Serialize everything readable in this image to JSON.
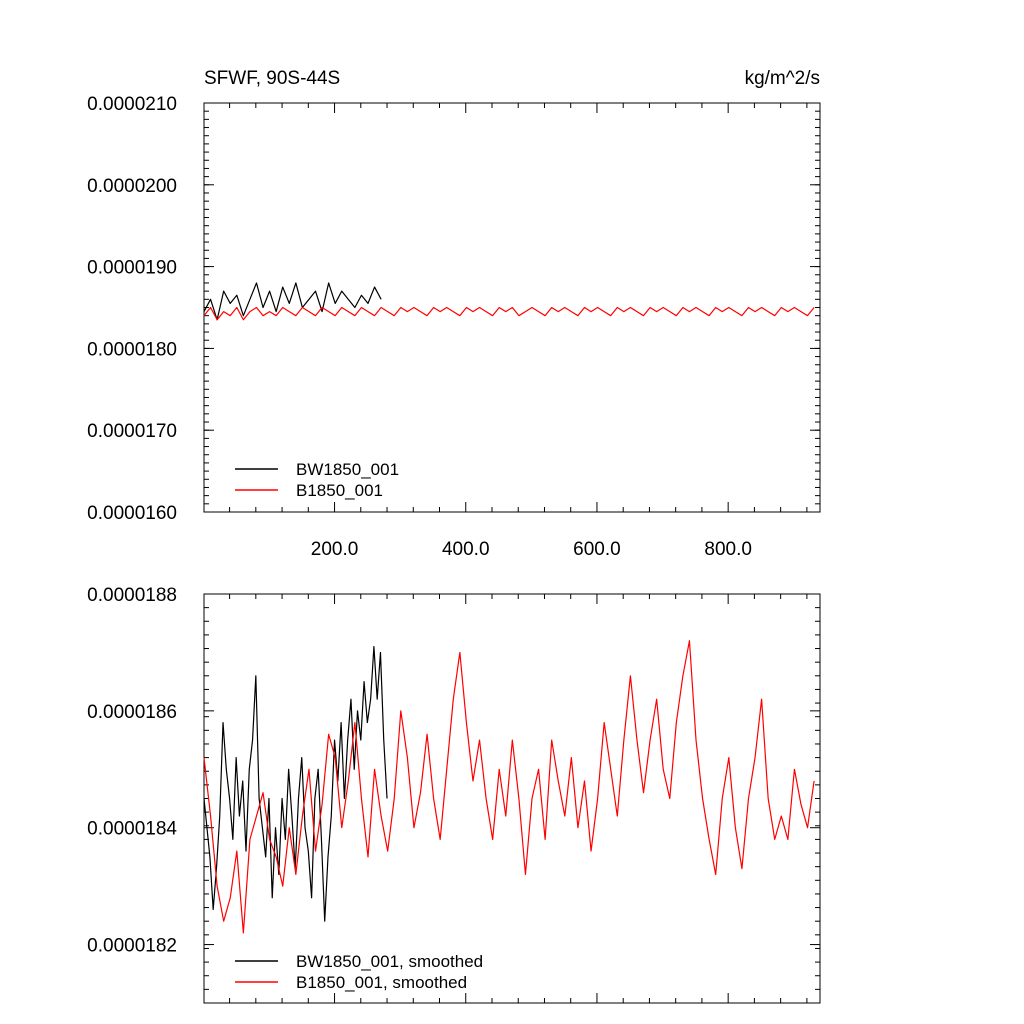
{
  "colors": {
    "BW1850_001": "#000000",
    "B1850_001": "#ff0000"
  },
  "chart_data": [
    {
      "type": "line",
      "title": "SFWF, 90S-44S",
      "units": "kg/m^2/s",
      "xlabel": "",
      "ylabel": "",
      "xlim": [
        1,
        940
      ],
      "ylim": [
        1.6e-05,
        2.1e-05
      ],
      "x_ticks": [
        200,
        400,
        600,
        800
      ],
      "x_tick_labels": [
        "200.0",
        "400.0",
        "600.0",
        "800.0"
      ],
      "y_ticks": [
        1.6e-05,
        1.7e-05,
        1.8e-05,
        1.9e-05,
        2e-05,
        2.1e-05
      ],
      "y_tick_labels": [
        "0.0000160",
        "0.0000170",
        "0.0000180",
        "0.0000190",
        "0.0000200",
        "0.0000210"
      ],
      "grid": false,
      "legend_position": "bottom-left",
      "series": [
        {
          "name": "BW1850_001",
          "color": "#000000",
          "x_start": 1,
          "x_step": 10,
          "values": [
            1.845e-05,
            1.86e-05,
            1.835e-05,
            1.87e-05,
            1.855e-05,
            1.865e-05,
            1.84e-05,
            1.86e-05,
            1.88e-05,
            1.85e-05,
            1.87e-05,
            1.845e-05,
            1.875e-05,
            1.855e-05,
            1.88e-05,
            1.85e-05,
            1.86e-05,
            1.87e-05,
            1.845e-05,
            1.88e-05,
            1.855e-05,
            1.87e-05,
            1.86e-05,
            1.85e-05,
            1.865e-05,
            1.855e-05,
            1.875e-05,
            1.86e-05
          ]
        },
        {
          "name": "B1850_001",
          "color": "#ff0000",
          "x_start": 1,
          "x_step": 10,
          "values": [
            1.84e-05,
            1.85e-05,
            1.835e-05,
            1.845e-05,
            1.84e-05,
            1.85e-05,
            1.835e-05,
            1.845e-05,
            1.85e-05,
            1.84e-05,
            1.845e-05,
            1.84e-05,
            1.85e-05,
            1.845e-05,
            1.84e-05,
            1.85e-05,
            1.845e-05,
            1.84e-05,
            1.85e-05,
            1.845e-05,
            1.84e-05,
            1.85e-05,
            1.845e-05,
            1.84e-05,
            1.85e-05,
            1.845e-05,
            1.84e-05,
            1.85e-05,
            1.845e-05,
            1.84e-05,
            1.85e-05,
            1.845e-05,
            1.85e-05,
            1.845e-05,
            1.84e-05,
            1.85e-05,
            1.845e-05,
            1.85e-05,
            1.845e-05,
            1.84e-05,
            1.85e-05,
            1.845e-05,
            1.85e-05,
            1.845e-05,
            1.84e-05,
            1.85e-05,
            1.845e-05,
            1.85e-05,
            1.84e-05,
            1.845e-05,
            1.85e-05,
            1.845e-05,
            1.84e-05,
            1.85e-05,
            1.845e-05,
            1.85e-05,
            1.845e-05,
            1.84e-05,
            1.85e-05,
            1.845e-05,
            1.85e-05,
            1.845e-05,
            1.84e-05,
            1.85e-05,
            1.845e-05,
            1.85e-05,
            1.845e-05,
            1.84e-05,
            1.85e-05,
            1.845e-05,
            1.85e-05,
            1.845e-05,
            1.84e-05,
            1.85e-05,
            1.845e-05,
            1.85e-05,
            1.845e-05,
            1.84e-05,
            1.85e-05,
            1.845e-05,
            1.85e-05,
            1.845e-05,
            1.84e-05,
            1.85e-05,
            1.845e-05,
            1.85e-05,
            1.845e-05,
            1.84e-05,
            1.85e-05,
            1.845e-05,
            1.85e-05,
            1.845e-05,
            1.84e-05,
            1.85e-05
          ]
        }
      ]
    },
    {
      "type": "line",
      "title": "",
      "units": "",
      "xlabel": "",
      "ylabel": "",
      "xlim": [
        1,
        940
      ],
      "ylim": [
        1.81e-05,
        1.88e-05
      ],
      "x_ticks": [
        200,
        400,
        600,
        800
      ],
      "x_tick_labels": [
        "",
        "",
        "",
        ""
      ],
      "y_ticks": [
        1.82e-05,
        1.84e-05,
        1.86e-05,
        1.88e-05
      ],
      "y_tick_labels": [
        "0.0000182",
        "0.0000184",
        "0.0000186",
        "0.0000188"
      ],
      "grid": false,
      "legend_position": "bottom-left",
      "series": [
        {
          "name": "BW1850_001, smoothed",
          "color": "#000000",
          "x": [
            1,
            10,
            15,
            20,
            25,
            30,
            35,
            40,
            45,
            50,
            55,
            60,
            65,
            70,
            75,
            80,
            85,
            90,
            95,
            100,
            105,
            110,
            115,
            120,
            125,
            130,
            135,
            140,
            145,
            150,
            155,
            160,
            165,
            170,
            175,
            180,
            185,
            190,
            195,
            200,
            205,
            210,
            215,
            220,
            225,
            230,
            235,
            240,
            245,
            250,
            255,
            260,
            265,
            270,
            275,
            280
          ],
          "values": [
            1.845e-05,
            1.835e-05,
            1.826e-05,
            1.833e-05,
            1.842e-05,
            1.858e-05,
            1.85e-05,
            1.845e-05,
            1.838e-05,
            1.852e-05,
            1.842e-05,
            1.848e-05,
            1.836e-05,
            1.85e-05,
            1.855e-05,
            1.866e-05,
            1.845e-05,
            1.84e-05,
            1.835e-05,
            1.845e-05,
            1.828e-05,
            1.84e-05,
            1.832e-05,
            1.845e-05,
            1.838e-05,
            1.85e-05,
            1.842e-05,
            1.833e-05,
            1.845e-05,
            1.852e-05,
            1.84e-05,
            1.836e-05,
            1.828e-05,
            1.845e-05,
            1.85e-05,
            1.838e-05,
            1.824e-05,
            1.835e-05,
            1.842e-05,
            1.855e-05,
            1.848e-05,
            1.858e-05,
            1.845e-05,
            1.855e-05,
            1.862e-05,
            1.85e-05,
            1.86e-05,
            1.855e-05,
            1.865e-05,
            1.858e-05,
            1.862e-05,
            1.871e-05,
            1.862e-05,
            1.87e-05,
            1.855e-05,
            1.845e-05
          ]
        },
        {
          "name": "B1850_001, smoothed",
          "color": "#ff0000",
          "x_start": 1,
          "x_step": 10,
          "values": [
            1.852e-05,
            1.842e-05,
            1.83e-05,
            1.824e-05,
            1.828e-05,
            1.836e-05,
            1.822e-05,
            1.838e-05,
            1.842e-05,
            1.846e-05,
            1.838e-05,
            1.835e-05,
            1.83e-05,
            1.84e-05,
            1.832e-05,
            1.842e-05,
            1.85e-05,
            1.836e-05,
            1.844e-05,
            1.856e-05,
            1.852e-05,
            1.84e-05,
            1.848e-05,
            1.858e-05,
            1.845e-05,
            1.835e-05,
            1.85e-05,
            1.842e-05,
            1.836e-05,
            1.845e-05,
            1.86e-05,
            1.852e-05,
            1.84e-05,
            1.846e-05,
            1.856e-05,
            1.845e-05,
            1.838e-05,
            1.85e-05,
            1.862e-05,
            1.87e-05,
            1.858e-05,
            1.848e-05,
            1.855e-05,
            1.845e-05,
            1.838e-05,
            1.85e-05,
            1.842e-05,
            1.855e-05,
            1.845e-05,
            1.832e-05,
            1.845e-05,
            1.85e-05,
            1.838e-05,
            1.855e-05,
            1.848e-05,
            1.842e-05,
            1.852e-05,
            1.84e-05,
            1.848e-05,
            1.836e-05,
            1.845e-05,
            1.858e-05,
            1.85e-05,
            1.842e-05,
            1.855e-05,
            1.866e-05,
            1.855e-05,
            1.846e-05,
            1.855e-05,
            1.862e-05,
            1.85e-05,
            1.845e-05,
            1.858e-05,
            1.866e-05,
            1.872e-05,
            1.855e-05,
            1.845e-05,
            1.838e-05,
            1.832e-05,
            1.845e-05,
            1.852e-05,
            1.84e-05,
            1.833e-05,
            1.845e-05,
            1.852e-05,
            1.862e-05,
            1.845e-05,
            1.838e-05,
            1.842e-05,
            1.838e-05,
            1.85e-05,
            1.844e-05,
            1.84e-05,
            1.848e-05
          ]
        }
      ]
    }
  ]
}
